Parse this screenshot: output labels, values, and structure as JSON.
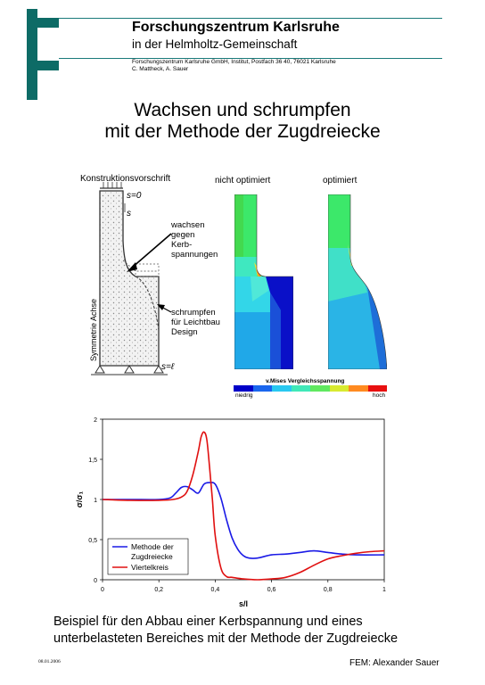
{
  "header": {
    "org_name": "Forschungszentrum Karlsruhe",
    "org_sub": "in der Helmholtz-Gemeinschaft",
    "address": "Forschungszentrum Karlsruhe GmbH, Institut, Postfach 36 40, 76021 Karlsruhe",
    "authors": "C. Mattheck, A. Sauer"
  },
  "title": {
    "line1": "Wachsen und schrumpfen",
    "line2": "mit der Methode der Zugdreiecke"
  },
  "figure": {
    "construction_label": "Konstruktionsvorschrift",
    "not_optimized": "nicht optimiert",
    "optimized": "optimiert",
    "grow_text": [
      "wachsen",
      "gegen",
      "Kerb-",
      "spannungen"
    ],
    "shrink_text": [
      "schrumpfen",
      "für Leichtbau",
      "Design"
    ],
    "symmetry_axis": "Symmetrie Achse",
    "s0_label": "s=0",
    "s_label": "s",
    "sl_label": "s=ℓ",
    "scale_title": "v.Mises Vergleichsspannung",
    "scale_low": "niedrig",
    "scale_high": "hoch",
    "scale_colors": [
      "#0000c8",
      "#1a66ee",
      "#29c8f0",
      "#40e8b8",
      "#60e860",
      "#d8ea30",
      "#ff8a20",
      "#e81010"
    ]
  },
  "chart_data": {
    "type": "line",
    "xlabel": "s/l",
    "ylabel": "σ/σ₁",
    "xlim": [
      0,
      1
    ],
    "ylim": [
      0,
      2
    ],
    "x_ticks": [
      "0",
      "0,2",
      "0,4",
      "0,6",
      "0,8",
      "1"
    ],
    "y_ticks": [
      "0",
      "0,5",
      "1",
      "1,5",
      "2"
    ],
    "legend_position": "bottom-left",
    "series": [
      {
        "name": "Methode der Zugdreiecke",
        "color": "#1a1ae6",
        "x": [
          0,
          0.1,
          0.2,
          0.24,
          0.26,
          0.28,
          0.3,
          0.32,
          0.34,
          0.36,
          0.38,
          0.4,
          0.42,
          0.44,
          0.46,
          0.48,
          0.5,
          0.52,
          0.55,
          0.6,
          0.65,
          0.7,
          0.75,
          0.8,
          0.85,
          0.9,
          1.0
        ],
        "y": [
          1.0,
          1.0,
          1.0,
          1.02,
          1.08,
          1.15,
          1.16,
          1.12,
          1.08,
          1.19,
          1.21,
          1.19,
          1.02,
          0.75,
          0.52,
          0.38,
          0.3,
          0.27,
          0.27,
          0.31,
          0.32,
          0.34,
          0.36,
          0.34,
          0.32,
          0.31,
          0.31
        ]
      },
      {
        "name": "Viertelkreis",
        "color": "#e01010",
        "x": [
          0,
          0.1,
          0.2,
          0.25,
          0.28,
          0.3,
          0.32,
          0.34,
          0.35,
          0.36,
          0.37,
          0.38,
          0.39,
          0.4,
          0.42,
          0.44,
          0.46,
          0.5,
          0.55,
          0.6,
          0.65,
          0.7,
          0.75,
          0.8,
          0.85,
          0.9,
          0.95,
          1.0
        ],
        "y": [
          1.0,
          0.99,
          0.99,
          1.0,
          1.03,
          1.1,
          1.3,
          1.6,
          1.78,
          1.84,
          1.75,
          1.4,
          1.0,
          0.55,
          0.15,
          0.04,
          0.03,
          0.01,
          0.0,
          0.01,
          0.03,
          0.09,
          0.18,
          0.26,
          0.3,
          0.33,
          0.35,
          0.36
        ]
      }
    ]
  },
  "caption": {
    "line1": "Beispiel für den Abbau einer Kerbspannung und eines",
    "line2": "unterbelasteten Bereiches mit der Methode der Zugdreiecke"
  },
  "footer": {
    "date": "08.01.2006",
    "author": "FEM: Alexander Sauer"
  }
}
